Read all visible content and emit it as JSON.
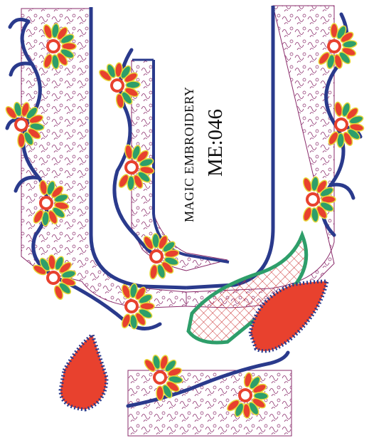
{
  "design": {
    "brand": "MAGIC EMBROIDERY",
    "code": "ME:046"
  },
  "palette": {
    "outline_blue": "#2a3a8c",
    "fill_red": "#e8412e",
    "leaf_green": "#2e9e6a",
    "thread_yellow": "#e7d93a",
    "net_purple": "#8a2b6b",
    "grid_red": "#cc3333"
  },
  "elements": {
    "motifs": [
      "floral-fan-motif",
      "paisley-motif",
      "vine-scroll"
    ]
  }
}
